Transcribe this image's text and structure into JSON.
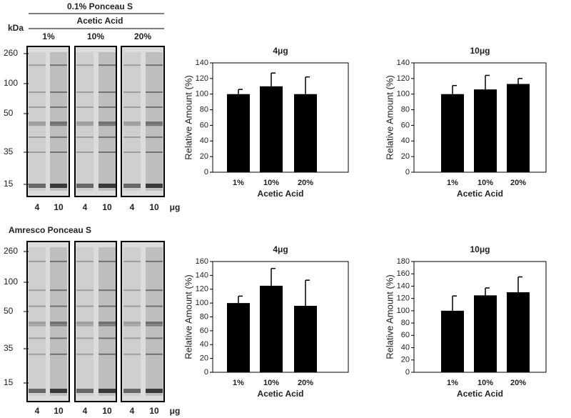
{
  "gels": [
    {
      "header": "0.1% Ponceau S",
      "subheader": "Acetic Acid",
      "columns": [
        "1%",
        "10%",
        "20%"
      ],
      "unit_label": "kDa",
      "markers": [
        "260",
        "100",
        "50",
        "35",
        "15"
      ],
      "lanes": [
        "4",
        "10",
        "4",
        "10",
        "4",
        "10"
      ],
      "lane_unit": "μg"
    },
    {
      "header": "Amresco Ponceau S",
      "markers": [
        "260",
        "100",
        "50",
        "35",
        "15"
      ],
      "lanes": [
        "4",
        "10",
        "4",
        "10",
        "4",
        "10"
      ],
      "lane_unit": "μg"
    }
  ],
  "chart_data": [
    {
      "type": "bar",
      "title": "4μg",
      "x_label": "Acetic Acid",
      "y_label": "Relative Amount (%)",
      "categories": [
        "1%",
        "10%",
        "20%"
      ],
      "values": [
        100,
        110,
        100
      ],
      "errors": [
        6,
        17,
        22
      ],
      "color": "#000000",
      "ylim": [
        0,
        140
      ],
      "yticks": [
        0,
        20,
        40,
        60,
        80,
        100,
        120,
        140
      ]
    },
    {
      "type": "bar",
      "title": "10μg",
      "x_label": "Acetic Acid",
      "y_label": "Relative Amount (%)",
      "categories": [
        "1%",
        "10%",
        "20%"
      ],
      "values": [
        100,
        106,
        113
      ],
      "errors": [
        11,
        18,
        7
      ],
      "color": "#000000",
      "ylim": [
        0,
        140
      ],
      "yticks": [
        0,
        20,
        40,
        60,
        80,
        100,
        120,
        140
      ]
    },
    {
      "type": "bar",
      "title": "4μg",
      "x_label": "Acetic Acid",
      "y_label": "Relative Amount (%)",
      "categories": [
        "1%",
        "10%",
        "20%"
      ],
      "values": [
        100,
        125,
        96
      ],
      "errors": [
        10,
        25,
        37
      ],
      "color": "#000000",
      "ylim": [
        0,
        160
      ],
      "yticks": [
        0,
        20,
        40,
        60,
        80,
        100,
        120,
        140,
        160
      ]
    },
    {
      "type": "bar",
      "title": "10μg",
      "x_label": "Acetic Acid",
      "y_label": "Relative Amount (%)",
      "categories": [
        "1%",
        "10%",
        "20%"
      ],
      "values": [
        100,
        125,
        130
      ],
      "errors": [
        24,
        12,
        25
      ],
      "color": "#000000",
      "ylim": [
        0,
        180
      ],
      "yticks": [
        0,
        20,
        40,
        60,
        80,
        100,
        120,
        140,
        160,
        180
      ]
    }
  ]
}
